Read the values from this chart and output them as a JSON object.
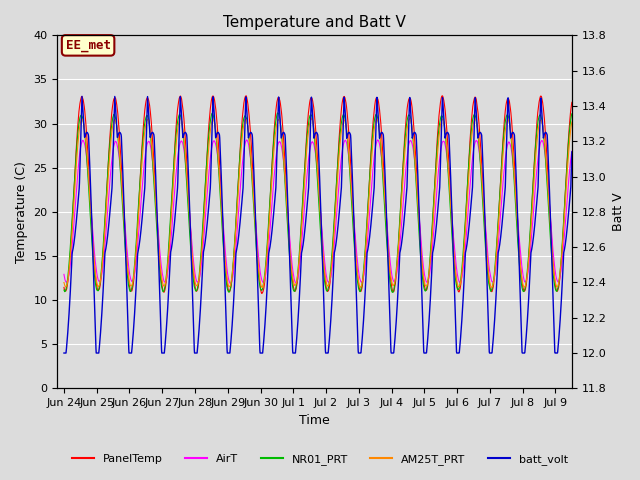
{
  "title": "Temperature and Batt V",
  "ylabel_left": "Temperature (C)",
  "ylabel_right": "Batt V",
  "xlabel": "Time",
  "ylim_left": [
    0,
    40
  ],
  "ylim_right": [
    11.8,
    13.8
  ],
  "xlim": [
    -0.2,
    15.5
  ],
  "xtick_labels": [
    "Jun 24",
    "Jun 25",
    "Jun 26",
    "Jun 27",
    "Jun 28",
    "Jun 29",
    "Jun 30",
    "Jul 1",
    "Jul 2",
    "Jul 3",
    "Jul 4",
    "Jul 5",
    "Jul 6",
    "Jul 7",
    "Jul 8",
    "Jul 9"
  ],
  "xtick_positions": [
    0,
    1,
    2,
    3,
    4,
    5,
    6,
    7,
    8,
    9,
    10,
    11,
    12,
    13,
    14,
    15
  ],
  "annotation_text": "EE_met",
  "annotation_color": "#8B0000",
  "annotation_bg": "#FFFFCC",
  "background_color": "#DCDCDC",
  "fig_background": "#DCDCDC",
  "legend_entries": [
    "PanelTemp",
    "AirT",
    "NR01_PRT",
    "AM25T_PRT",
    "batt_volt"
  ],
  "line_colors": [
    "#FF0000",
    "#FF00FF",
    "#00BB00",
    "#FF8800",
    "#0000CC"
  ],
  "title_fontsize": 11,
  "axis_fontsize": 9,
  "tick_fontsize": 8
}
